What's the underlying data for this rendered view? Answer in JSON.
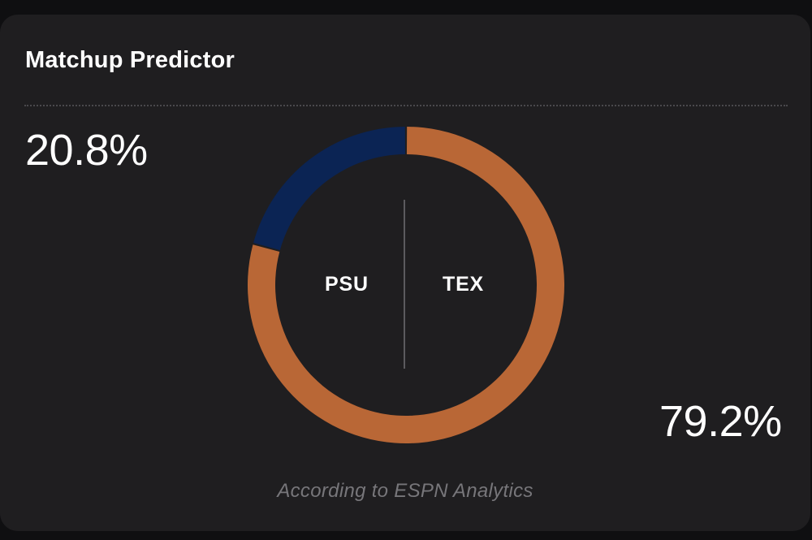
{
  "widget": {
    "title": "Matchup Predictor",
    "footer": "According to ESPN Analytics"
  },
  "matchup": {
    "away": {
      "abbr": "PSU",
      "win_pct_label": "20.8%",
      "color": "#0b2454"
    },
    "home": {
      "abbr": "TEX",
      "win_pct_label": "79.2%",
      "color": "#b96736"
    }
  },
  "chart_data": {
    "type": "pie",
    "categories": [
      "PSU",
      "TEX"
    ],
    "values": [
      20.8,
      79.2
    ],
    "colors": [
      "#0b2454",
      "#b96736"
    ]
  }
}
